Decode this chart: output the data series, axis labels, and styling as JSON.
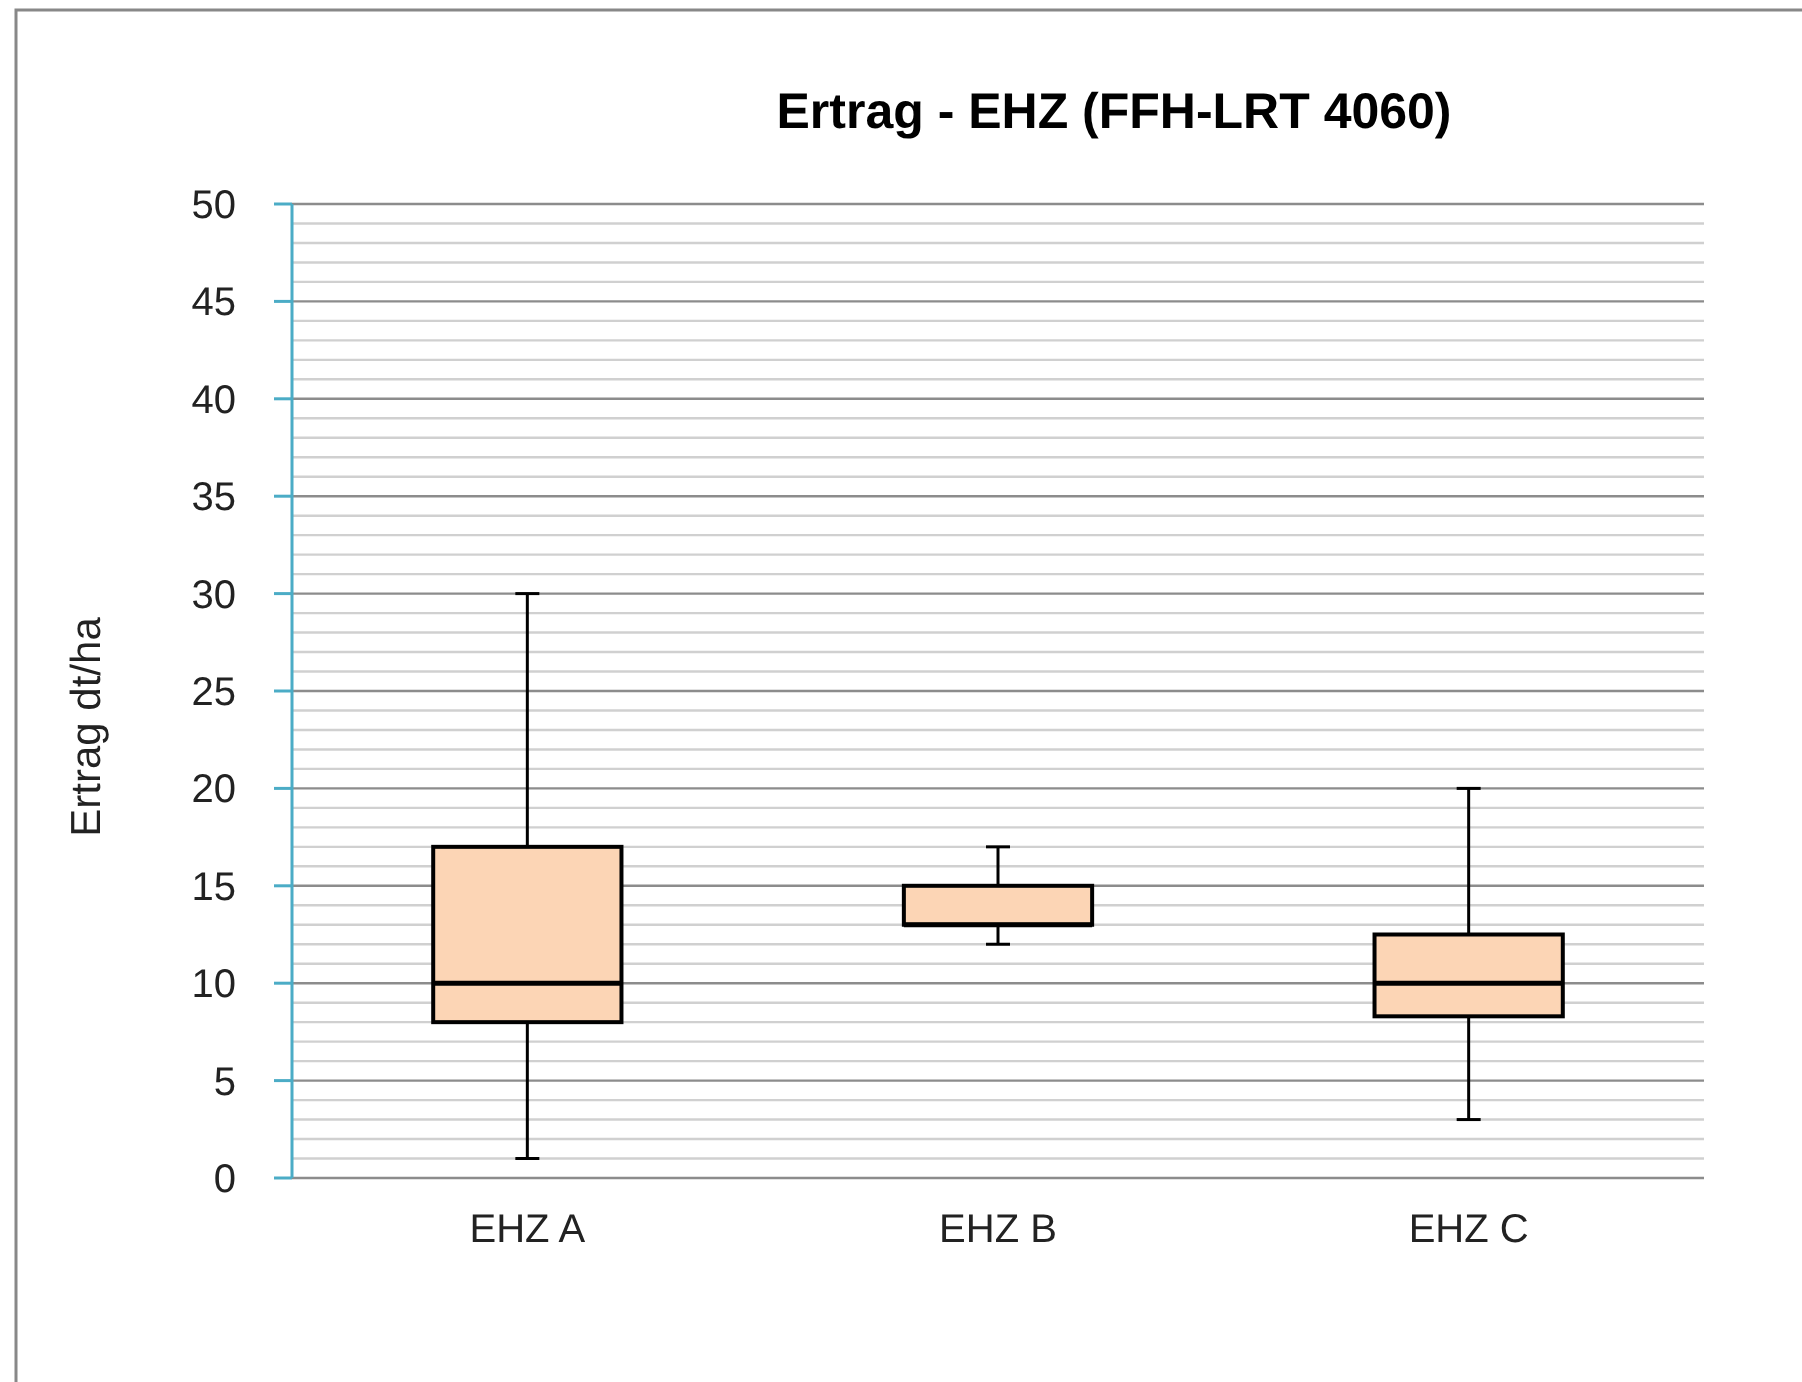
{
  "chart_data": {
    "type": "box",
    "title": "Ertrag - EHZ (FFH-LRT 4060)",
    "ylabel": "Ertrag dt/ha",
    "categories": [
      "EHZ A",
      "EHZ B",
      "EHZ C"
    ],
    "color": "#fcd5b5",
    "boxes": [
      {
        "low": 1,
        "q1": 8,
        "median": 10,
        "q3": 17,
        "high": 30
      },
      {
        "low": 12,
        "q1": 13,
        "median": 13,
        "q3": 15,
        "high": 17
      },
      {
        "low": 3,
        "q1": 8.3,
        "median": 10,
        "q3": 12.5,
        "high": 20
      }
    ],
    "ylim": [
      0,
      50
    ],
    "yticks": [
      0,
      {
        "value": 1,
        "label": null
      },
      {
        "value": 2,
        "label": null
      },
      {
        "value": 3,
        "label": null
      },
      {
        "value": 4,
        "label": null
      },
      5,
      {
        "value": 6,
        "label": null
      },
      {
        "value": 7,
        "label": null
      },
      {
        "value": 8,
        "label": null
      },
      {
        "value": 9,
        "label": null
      },
      10,
      {
        "value": 11,
        "label": null
      },
      {
        "value": 12,
        "label": null
      },
      {
        "value": 13,
        "label": null
      },
      {
        "value": 14,
        "label": null
      },
      15,
      {
        "value": 16,
        "label": null
      },
      {
        "value": 17,
        "label": null
      },
      {
        "value": 18,
        "label": null
      },
      {
        "value": 19,
        "label": null
      },
      20,
      {
        "value": 21,
        "label": null
      },
      {
        "value": 22,
        "label": null
      },
      {
        "value": 23,
        "label": null
      },
      {
        "value": 24,
        "label": null
      },
      25,
      {
        "value": 26,
        "label": null
      },
      {
        "value": 27,
        "label": null
      },
      {
        "value": 28,
        "label": null
      },
      {
        "value": 29,
        "label": null
      },
      30,
      {
        "value": 31,
        "label": null
      },
      {
        "value": 32,
        "label": null
      },
      {
        "value": 33,
        "label": null
      },
      {
        "value": 34,
        "label": null
      },
      35,
      {
        "value": 36,
        "label": null
      },
      {
        "value": 37,
        "label": null
      },
      {
        "value": 38,
        "label": null
      },
      {
        "value": 39,
        "label": null
      },
      40,
      {
        "value": 41,
        "label": null
      },
      {
        "value": 42,
        "label": null
      },
      {
        "value": 43,
        "label": null
      },
      {
        "value": 44,
        "label": null
      },
      45,
      {
        "value": 46,
        "label": null
      },
      {
        "value": 47,
        "label": null
      },
      {
        "value": 48,
        "label": null
      },
      {
        "value": 49,
        "label": null
      },
      50
    ],
    "grid": true
  }
}
